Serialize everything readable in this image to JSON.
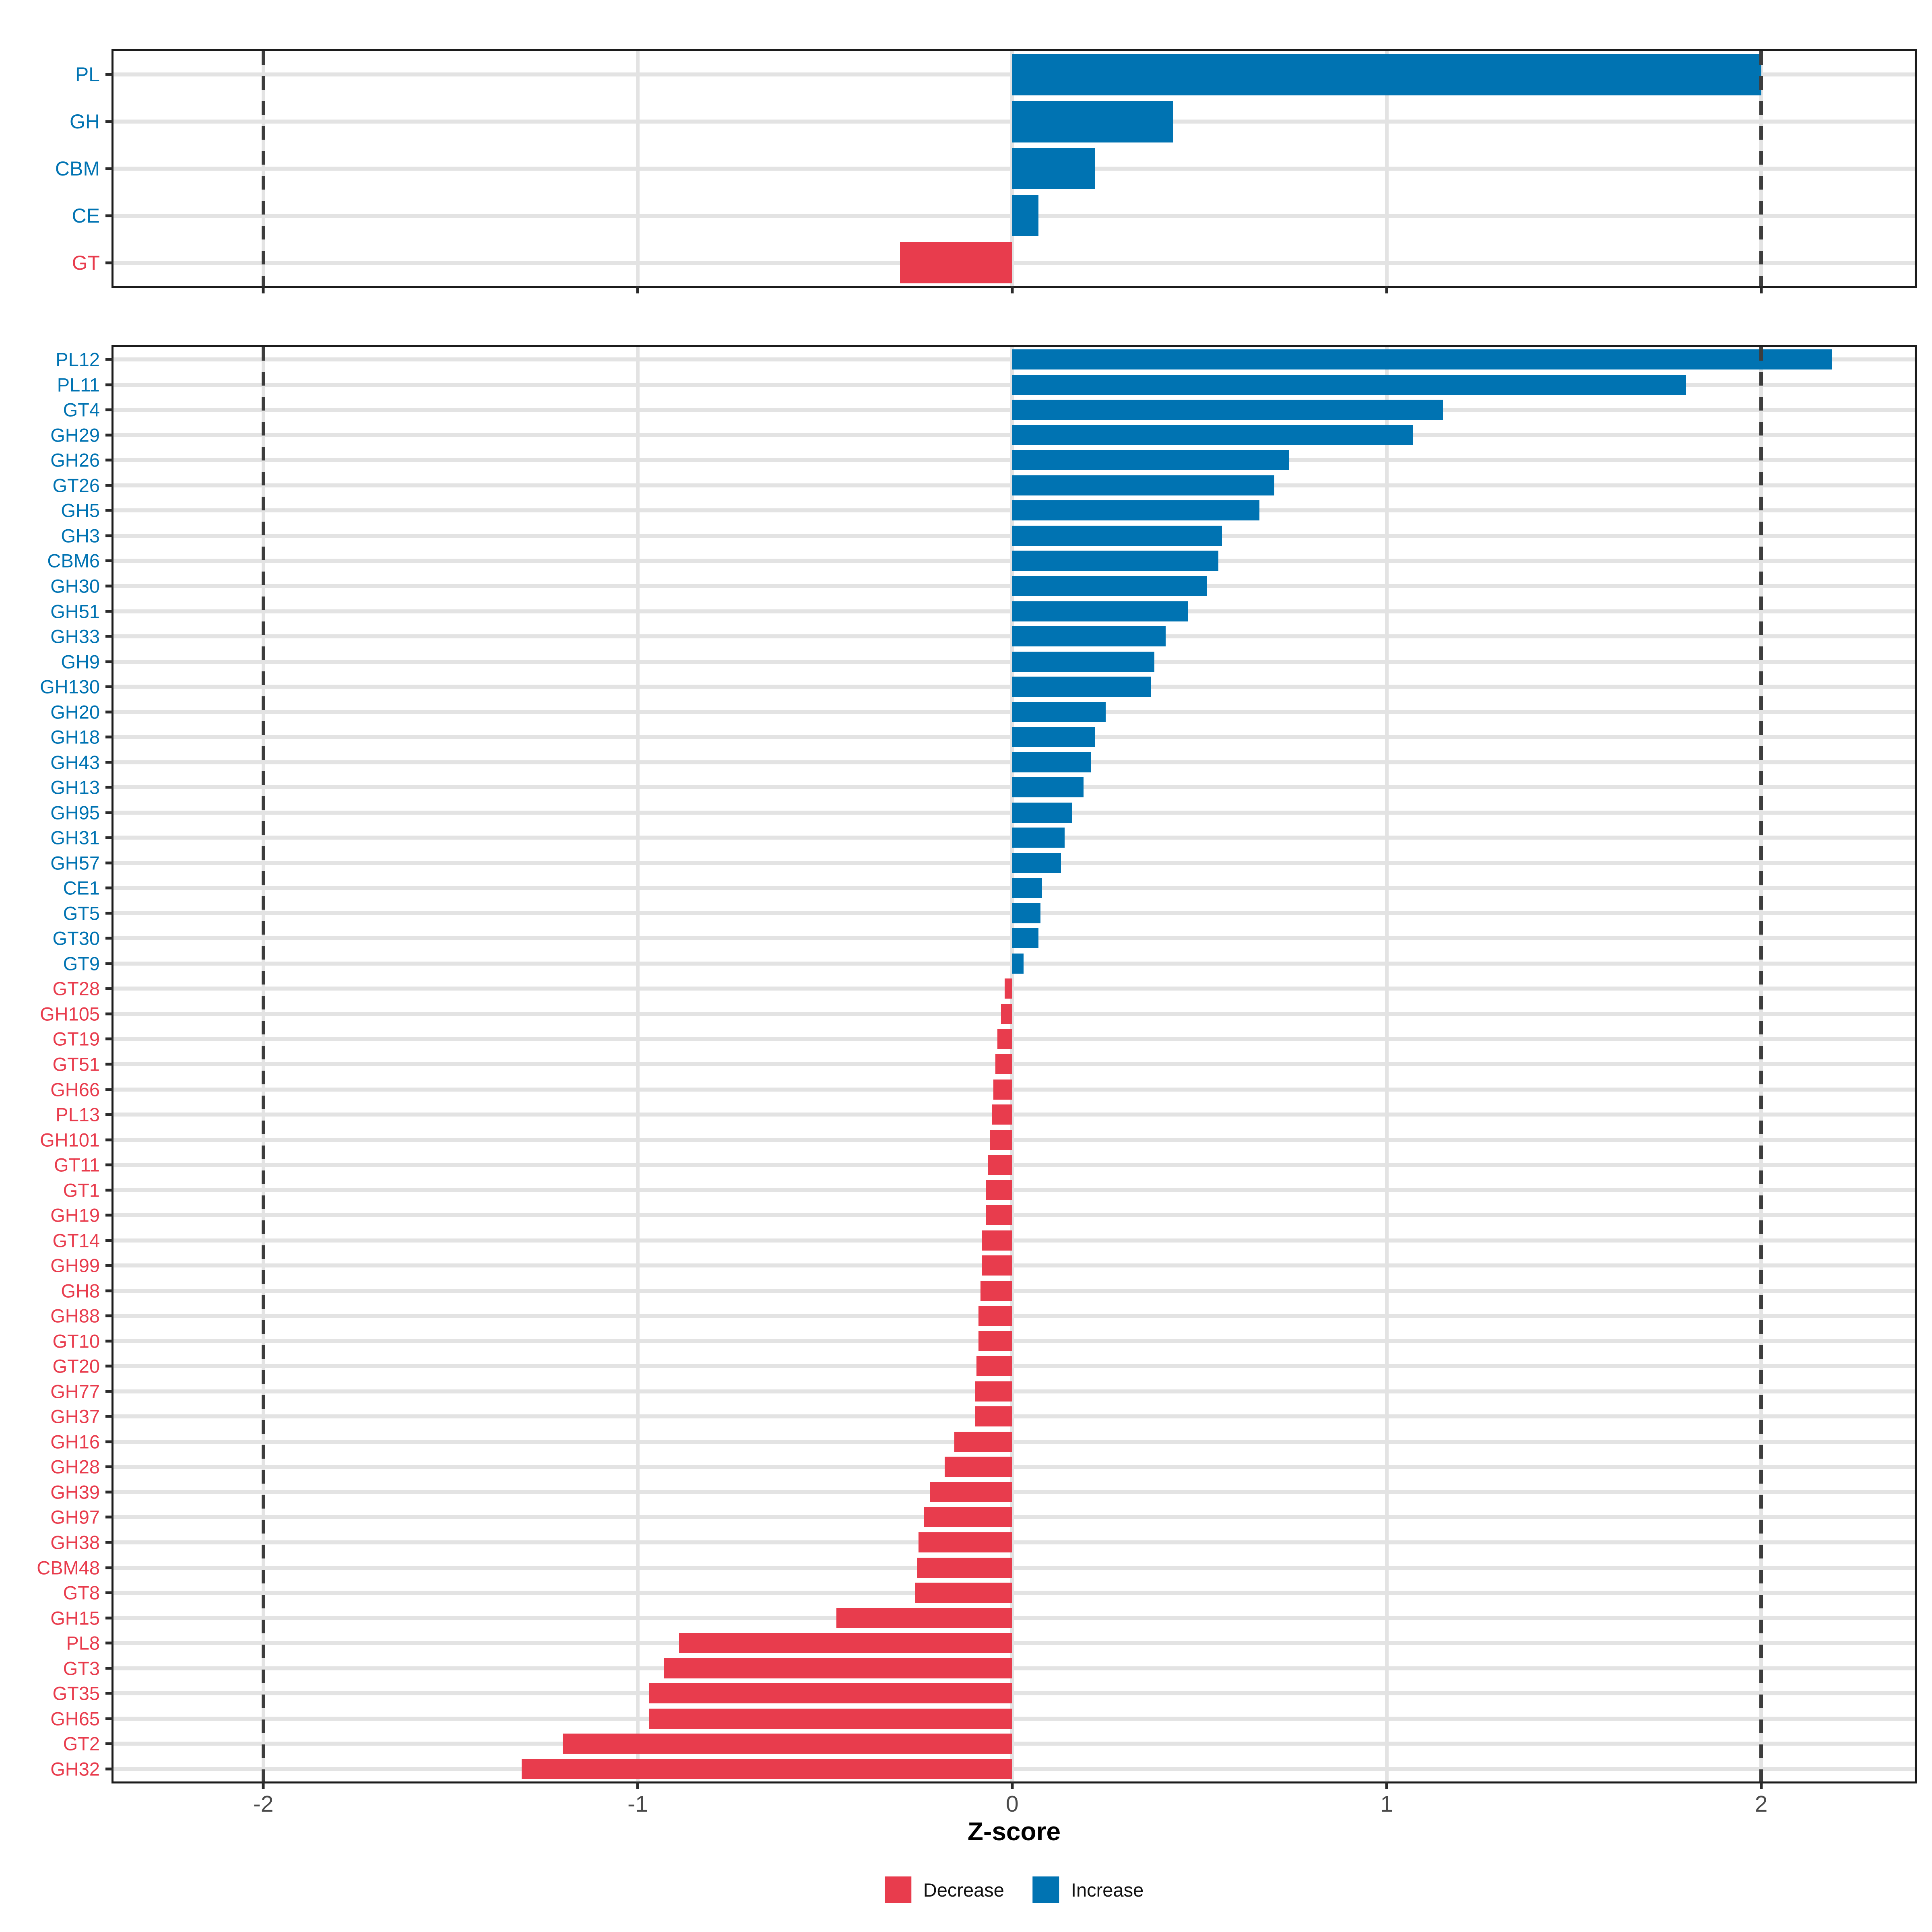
{
  "chart_data": {
    "type": "bar",
    "orientation": "horizontal",
    "xlabel": "Z-score",
    "xlim": [
      -2.4,
      2.41
    ],
    "grid": true,
    "dashed_vlines": [
      -2,
      2
    ],
    "x_ticks": [
      {
        "value": -2,
        "label": "-2"
      },
      {
        "value": -1,
        "label": "-1"
      },
      {
        "value": 0,
        "label": "0"
      },
      {
        "value": 1,
        "label": "1"
      },
      {
        "value": 2,
        "label": "2"
      }
    ],
    "colors": {
      "increase": "#0073B2",
      "decrease": "#E83C4D"
    },
    "legend": [
      {
        "label": "Decrease",
        "color": "#E83C4D"
      },
      {
        "label": "Increase",
        "color": "#0073B2"
      }
    ],
    "legend_position": "bottom",
    "panels": [
      {
        "name": "cazyme-class-panel",
        "bars": [
          {
            "label": "PL",
            "value": 2.0,
            "direction": "increase"
          },
          {
            "label": "GH",
            "value": 0.43,
            "direction": "increase"
          },
          {
            "label": "CBM",
            "value": 0.22,
            "direction": "increase"
          },
          {
            "label": "CE",
            "value": 0.07,
            "direction": "increase"
          },
          {
            "label": "GT",
            "value": -0.3,
            "direction": "decrease"
          }
        ]
      },
      {
        "name": "cazyme-family-panel",
        "bars": [
          {
            "label": "PL12",
            "value": 2.19,
            "direction": "increase"
          },
          {
            "label": "PL11",
            "value": 1.8,
            "direction": "increase"
          },
          {
            "label": "GT4",
            "value": 1.15,
            "direction": "increase"
          },
          {
            "label": "GH29",
            "value": 1.07,
            "direction": "increase"
          },
          {
            "label": "GH26",
            "value": 0.74,
            "direction": "increase"
          },
          {
            "label": "GT26",
            "value": 0.7,
            "direction": "increase"
          },
          {
            "label": "GH5",
            "value": 0.66,
            "direction": "increase"
          },
          {
            "label": "GH3",
            "value": 0.56,
            "direction": "increase"
          },
          {
            "label": "CBM6",
            "value": 0.55,
            "direction": "increase"
          },
          {
            "label": "GH30",
            "value": 0.52,
            "direction": "increase"
          },
          {
            "label": "GH51",
            "value": 0.47,
            "direction": "increase"
          },
          {
            "label": "GH33",
            "value": 0.41,
            "direction": "increase"
          },
          {
            "label": "GH9",
            "value": 0.38,
            "direction": "increase"
          },
          {
            "label": "GH130",
            "value": 0.37,
            "direction": "increase"
          },
          {
            "label": "GH20",
            "value": 0.25,
            "direction": "increase"
          },
          {
            "label": "GH18",
            "value": 0.22,
            "direction": "increase"
          },
          {
            "label": "GH43",
            "value": 0.21,
            "direction": "increase"
          },
          {
            "label": "GH13",
            "value": 0.19,
            "direction": "increase"
          },
          {
            "label": "GH95",
            "value": 0.16,
            "direction": "increase"
          },
          {
            "label": "GH31",
            "value": 0.14,
            "direction": "increase"
          },
          {
            "label": "GH57",
            "value": 0.13,
            "direction": "increase"
          },
          {
            "label": "CE1",
            "value": 0.08,
            "direction": "increase"
          },
          {
            "label": "GT5",
            "value": 0.075,
            "direction": "increase"
          },
          {
            "label": "GT30",
            "value": 0.07,
            "direction": "increase"
          },
          {
            "label": "GT9",
            "value": 0.03,
            "direction": "increase"
          },
          {
            "label": "GT28",
            "value": -0.02,
            "direction": "decrease"
          },
          {
            "label": "GH105",
            "value": -0.03,
            "direction": "decrease"
          },
          {
            "label": "GT19",
            "value": -0.04,
            "direction": "decrease"
          },
          {
            "label": "GT51",
            "value": -0.045,
            "direction": "decrease"
          },
          {
            "label": "GH66",
            "value": -0.05,
            "direction": "decrease"
          },
          {
            "label": "PL13",
            "value": -0.055,
            "direction": "decrease"
          },
          {
            "label": "GH101",
            "value": -0.06,
            "direction": "decrease"
          },
          {
            "label": "GT11",
            "value": -0.065,
            "direction": "decrease"
          },
          {
            "label": "GT1",
            "value": -0.07,
            "direction": "decrease"
          },
          {
            "label": "GH19",
            "value": -0.07,
            "direction": "decrease"
          },
          {
            "label": "GT14",
            "value": -0.08,
            "direction": "decrease"
          },
          {
            "label": "GH99",
            "value": -0.08,
            "direction": "decrease"
          },
          {
            "label": "GH8",
            "value": -0.085,
            "direction": "decrease"
          },
          {
            "label": "GH88",
            "value": -0.09,
            "direction": "decrease"
          },
          {
            "label": "GT10",
            "value": -0.09,
            "direction": "decrease"
          },
          {
            "label": "GT20",
            "value": -0.095,
            "direction": "decrease"
          },
          {
            "label": "GH77",
            "value": -0.1,
            "direction": "decrease"
          },
          {
            "label": "GH37",
            "value": -0.1,
            "direction": "decrease"
          },
          {
            "label": "GH16",
            "value": -0.155,
            "direction": "decrease"
          },
          {
            "label": "GH28",
            "value": -0.18,
            "direction": "decrease"
          },
          {
            "label": "GH39",
            "value": -0.22,
            "direction": "decrease"
          },
          {
            "label": "GH97",
            "value": -0.235,
            "direction": "decrease"
          },
          {
            "label": "GH38",
            "value": -0.25,
            "direction": "decrease"
          },
          {
            "label": "CBM48",
            "value": -0.255,
            "direction": "decrease"
          },
          {
            "label": "GT8",
            "value": -0.26,
            "direction": "decrease"
          },
          {
            "label": "GH15",
            "value": -0.47,
            "direction": "decrease"
          },
          {
            "label": "PL8",
            "value": -0.89,
            "direction": "decrease"
          },
          {
            "label": "GT3",
            "value": -0.93,
            "direction": "decrease"
          },
          {
            "label": "GT35",
            "value": -0.97,
            "direction": "decrease"
          },
          {
            "label": "GH65",
            "value": -0.97,
            "direction": "decrease"
          },
          {
            "label": "GT2",
            "value": -1.2,
            "direction": "decrease"
          },
          {
            "label": "GH32",
            "value": -1.31,
            "direction": "decrease"
          }
        ]
      }
    ]
  }
}
